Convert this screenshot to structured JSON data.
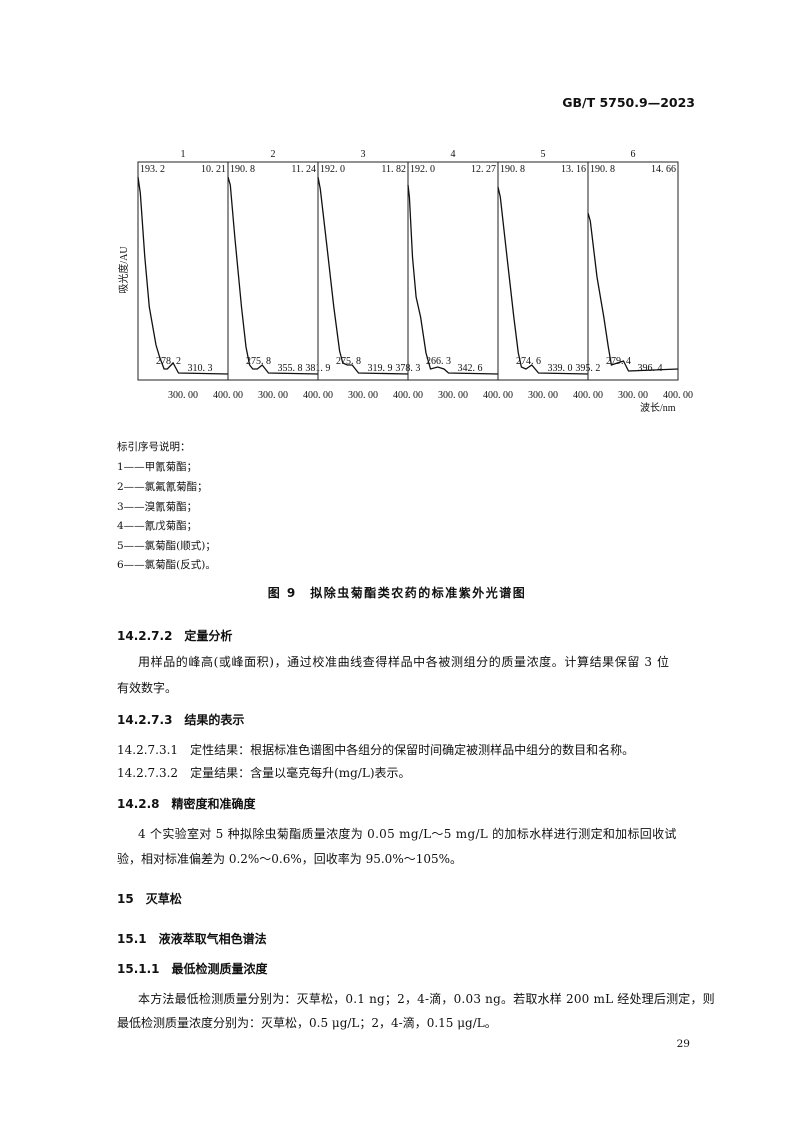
{
  "header": {
    "doc_id": "GB/T 5750.9—2023"
  },
  "chart_data": {
    "type": "line",
    "ylabel": "吸光度/AU",
    "xlabel": "波长/nm",
    "xlim": [
      200,
      400
    ],
    "x_ticks": [
      "300. 00",
      "400. 00"
    ],
    "grid": false,
    "panels": [
      {
        "title": "1",
        "max_label": "193. 2",
        "rt": "10. 21",
        "labels": [
          "278. 2",
          "310. 3"
        ],
        "points": [
          [
            200,
            1.0
          ],
          [
            205,
            0.92
          ],
          [
            215,
            0.6
          ],
          [
            225,
            0.35
          ],
          [
            240,
            0.16
          ],
          [
            248,
            0.1
          ],
          [
            258,
            0.04
          ],
          [
            265,
            0.04
          ],
          [
            278,
            0.07
          ],
          [
            290,
            0.02
          ],
          [
            400,
            0.015
          ]
        ]
      },
      {
        "title": "2",
        "max_label": "190. 8",
        "rt": "11. 24",
        "labels": [
          "275. 8",
          "355. 8",
          "381. 9"
        ],
        "points": [
          [
            200,
            1.0
          ],
          [
            205,
            0.96
          ],
          [
            215,
            0.7
          ],
          [
            230,
            0.35
          ],
          [
            240,
            0.15
          ],
          [
            248,
            0.06
          ],
          [
            255,
            0.04
          ],
          [
            265,
            0.04
          ],
          [
            276,
            0.06
          ],
          [
            290,
            0.02
          ],
          [
            400,
            0.015
          ]
        ]
      },
      {
        "title": "3",
        "max_label": "192. 0",
        "rt": "11. 82",
        "labels": [
          "275. 8",
          "319. 9",
          "378. 3"
        ],
        "points": [
          [
            200,
            1.0
          ],
          [
            205,
            0.94
          ],
          [
            220,
            0.65
          ],
          [
            235,
            0.35
          ],
          [
            248,
            0.13
          ],
          [
            255,
            0.07
          ],
          [
            265,
            0.06
          ],
          [
            276,
            0.06
          ],
          [
            290,
            0.02
          ],
          [
            400,
            0.015
          ]
        ]
      },
      {
        "title": "4",
        "max_label": "192. 0",
        "rt": "12. 27",
        "labels": [
          "266. 3",
          "342. 6"
        ],
        "points": [
          [
            200,
            0.96
          ],
          [
            203,
            0.9
          ],
          [
            210,
            0.6
          ],
          [
            218,
            0.4
          ],
          [
            228,
            0.3
          ],
          [
            240,
            0.12
          ],
          [
            250,
            0.04
          ],
          [
            266,
            0.05
          ],
          [
            280,
            0.04
          ],
          [
            290,
            0.02
          ],
          [
            400,
            0.015
          ]
        ]
      },
      {
        "title": "5",
        "max_label": "190. 8",
        "rt": "13. 16",
        "labels": [
          "274. 6",
          "339. 0",
          "395. 2"
        ],
        "points": [
          [
            200,
            0.95
          ],
          [
            205,
            0.9
          ],
          [
            220,
            0.6
          ],
          [
            235,
            0.3
          ],
          [
            245,
            0.12
          ],
          [
            252,
            0.05
          ],
          [
            262,
            0.04
          ],
          [
            275,
            0.06
          ],
          [
            290,
            0.02
          ],
          [
            400,
            0.015
          ]
        ]
      },
      {
        "title": "6",
        "max_label": "190. 8",
        "rt": "14. 66",
        "labels": [
          "279. 4",
          "396. 4"
        ],
        "points": [
          [
            200,
            0.82
          ],
          [
            205,
            0.78
          ],
          [
            220,
            0.5
          ],
          [
            235,
            0.3
          ],
          [
            245,
            0.15
          ],
          [
            252,
            0.06
          ],
          [
            265,
            0.07
          ],
          [
            279,
            0.08
          ],
          [
            290,
            0.03
          ],
          [
            400,
            0.04
          ]
        ]
      }
    ]
  },
  "legend": {
    "title": "标引序号说明：",
    "items": [
      "1——甲氰菊酯；",
      "2——氯氟氰菊酯；",
      "3——溴氰菊酯；",
      "4——氰戊菊酯；",
      "5——氯菊酯(顺式)；",
      "6——氯菊酯(反式)。"
    ]
  },
  "figure_caption": "图 9　拟除虫菊酯类农药的标准紫外光谱图",
  "sections": [
    {
      "heading": "14.2.7.2　定量分析"
    },
    {
      "para": [
        "用样品的峰高(或峰面积)，通过校准曲线查得样品中各被测组分的质量浓度。计算结果保留 3 位",
        "有效数字。"
      ]
    },
    {
      "heading": "14.2.7.3　结果的表示"
    },
    {
      "item": "14.2.7.3.1　定性结果：根据标准色谱图中各组分的保留时间确定被测样品中组分的数目和名称。"
    },
    {
      "item": "14.2.7.3.2　定量结果：含量以毫克每升(mg/L)表示。"
    },
    {
      "heading": "14.2.8　精密度和准确度"
    },
    {
      "para": [
        "4 个实验室对 5 种拟除虫菊酯质量浓度为 0.05 mg/L～5 mg/L 的加标水样进行测定和加标回收试",
        "验，相对标准偏差为 0.2%～0.6%，回收率为 95.0%～105%。"
      ]
    },
    {
      "heading": "15　灭草松"
    },
    {
      "heading": "15.1　液液萃取气相色谱法"
    },
    {
      "heading": "15.1.1　最低检测质量浓度"
    },
    {
      "para": [
        "本方法最低检测质量分别为：灭草松，0.1 ng；2，4-滴，0.03 ng。若取水样 200 mL 经处理后测定，则",
        "最低检测质量浓度分别为：灭草松，0.5 μg/L；2，4-滴，0.15 μg/L。"
      ]
    }
  ],
  "footer": {
    "page_number": "29"
  }
}
